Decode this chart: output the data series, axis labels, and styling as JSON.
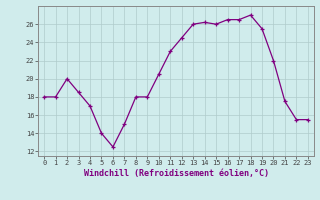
{
  "x": [
    0,
    1,
    2,
    3,
    4,
    5,
    6,
    7,
    8,
    9,
    10,
    11,
    12,
    13,
    14,
    15,
    16,
    17,
    18,
    19,
    20,
    21,
    22,
    23
  ],
  "y": [
    18,
    18,
    20,
    18.5,
    17,
    14,
    12.5,
    15,
    18,
    18,
    20.5,
    23,
    24.5,
    26,
    26.2,
    26,
    26.5,
    26.5,
    27,
    25.5,
    22,
    17.5,
    15.5,
    15.5
  ],
  "line_color": "#800080",
  "marker": "+",
  "bg_color": "#d0ecec",
  "grid_color": "#b0cccc",
  "xlabel": "Windchill (Refroidissement éolien,°C)",
  "xlim": [
    -0.5,
    23.5
  ],
  "ylim": [
    11.5,
    28
  ],
  "yticks": [
    12,
    14,
    16,
    18,
    20,
    22,
    24,
    26
  ],
  "xticks": [
    0,
    1,
    2,
    3,
    4,
    5,
    6,
    7,
    8,
    9,
    10,
    11,
    12,
    13,
    14,
    15,
    16,
    17,
    18,
    19,
    20,
    21,
    22,
    23
  ],
  "xlabel_fontsize": 6.0,
  "tick_fontsize": 5.0,
  "markersize": 3.0,
  "linewidth": 0.9
}
